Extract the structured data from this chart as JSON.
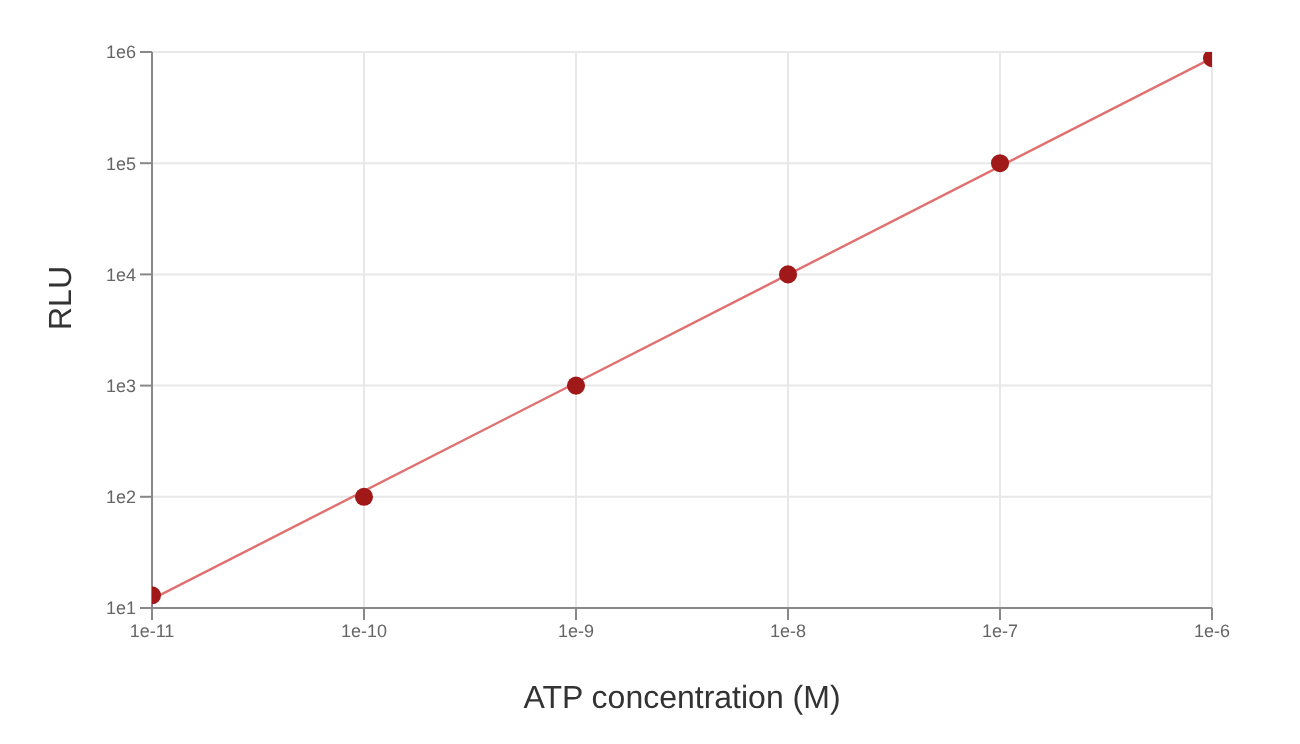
{
  "chart_data": {
    "type": "scatter",
    "xlabel": "ATP concentration (M)",
    "ylabel": "RLU",
    "log": "xy",
    "grid": true,
    "marker": "circle",
    "xlim": [
      1e-11,
      1e-06
    ],
    "xticks": [
      {
        "value": 1e-11,
        "label": "1e-11"
      },
      {
        "value": 1e-10,
        "label": "1e-10"
      },
      {
        "value": 1e-09,
        "label": "1e-9"
      },
      {
        "value": 1e-08,
        "label": "1e-8"
      },
      {
        "value": 1e-07,
        "label": "1e-7"
      },
      {
        "value": 1e-06,
        "label": "1e-6"
      }
    ],
    "ylim": [
      10,
      1000000
    ],
    "yticks": [
      {
        "value": 10,
        "label": "1e1"
      },
      {
        "value": 100,
        "label": "1e2"
      },
      {
        "value": 1000,
        "label": "1e3"
      },
      {
        "value": 10000,
        "label": "1e4"
      },
      {
        "value": 100000,
        "label": "1e5"
      },
      {
        "value": 1000000,
        "label": "1e6"
      }
    ],
    "x": [
      1e-11,
      1e-10,
      1e-09,
      1e-08,
      1e-07,
      1e-06
    ],
    "series": [
      {
        "color": "#a01818",
        "values": [
          13,
          100,
          1000,
          10000,
          100000,
          880000
        ]
      },
      {
        "type": "line",
        "color": "#e07070",
        "marker": "none",
        "x": [
          1e-11,
          1e-06
        ],
        "values": [
          12,
          880000
        ]
      }
    ]
  }
}
